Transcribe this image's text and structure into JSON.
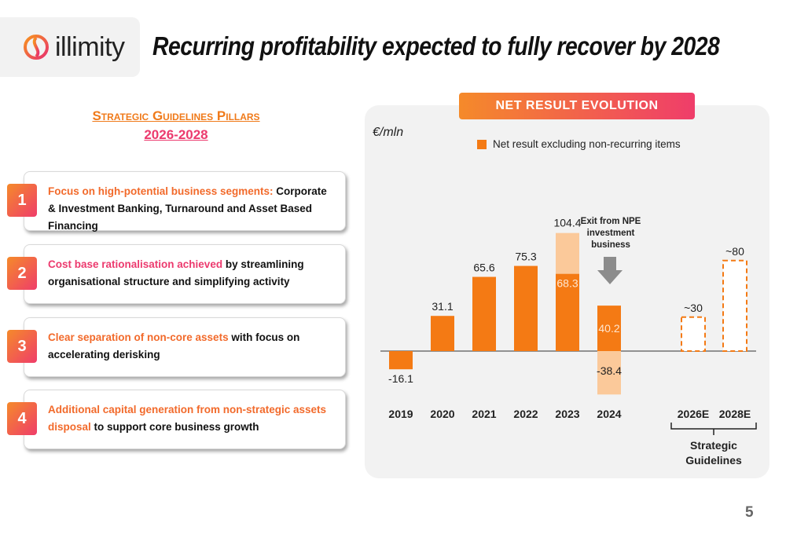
{
  "brand": {
    "logo_text": "illimity"
  },
  "title": "Recurring profitability expected to fully recover by 2028",
  "pillars": {
    "heading_line1": "Strategic Guidelines Pillars",
    "heading_line2": "2026-2028",
    "items": [
      {
        "num": "1",
        "highlight": "Focus on high-potential business segments:",
        "rest": " Corporate & Investment Banking, Turnaround and Asset Based Financing"
      },
      {
        "num": "2",
        "highlight": "Cost base rationalisation achieved",
        "rest": " by streamlining organisational structure and simplifying activity"
      },
      {
        "num": "3",
        "highlight": "Clear separation of non-core assets",
        "rest": " with focus on accelerating derisking"
      },
      {
        "num": "4",
        "highlight": "Additional capital generation from non-strategic assets disposal",
        "rest": " to support core business growth"
      }
    ]
  },
  "panel": {
    "header": "NET RESULT EVOLUTION",
    "unit": "€/mln",
    "legend": "Net result excluding non-recurring items"
  },
  "chart_data": {
    "type": "bar",
    "categories": [
      "2019",
      "2020",
      "2021",
      "2022",
      "2023",
      "2024",
      "2026E",
      "2028E"
    ],
    "series": [
      {
        "name": "Net result excluding non-recurring items",
        "values": [
          null,
          null,
          null,
          null,
          68.3,
          40.2,
          null,
          null
        ]
      }
    ],
    "totals": [
      -16.1,
      31.1,
      65.6,
      75.3,
      104.4,
      null,
      null,
      null
    ],
    "non_recurring_2024": -38.4,
    "targets": {
      "2026E": "~30",
      "2028E": "~80"
    },
    "target_values": [
      null,
      null,
      null,
      null,
      null,
      null,
      30,
      80
    ],
    "labels": [
      "-16.1",
      "31.1",
      "65.6",
      "75.3",
      "104.4",
      "68.3",
      "40.2",
      "-38.4"
    ],
    "annotation": "Exit from NPE investment business",
    "bracket_label": "Strategic Guidelines",
    "colors": {
      "main": "#f47a14",
      "light": "#fbc99a",
      "axis": "#333333"
    }
  },
  "page_number": "5"
}
